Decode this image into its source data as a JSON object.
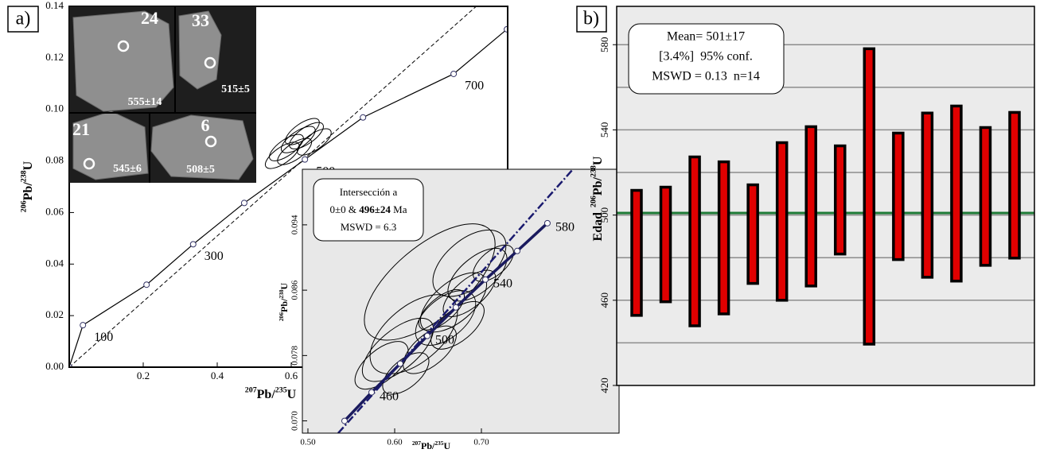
{
  "panel_labels": [
    "a)",
    "b)"
  ],
  "photo": [
    {
      "grain": "24",
      "age": "555±14"
    },
    {
      "grain": "33",
      "age": "515±5"
    },
    {
      "grain": "21",
      "age": "545±6"
    },
    {
      "grain": "6",
      "age": "508±5"
    }
  ],
  "chart_data": [
    {
      "type": "concordia",
      "xlabel": [
        "207",
        "Pb/",
        "235",
        "U"
      ],
      "ylabel": [
        "206",
        "Pb/",
        "238",
        "U"
      ],
      "xlim": [
        0,
        1.185
      ],
      "ylim": [
        0,
        0.14
      ],
      "xticks": [
        0.2,
        0.4,
        0.6
      ],
      "yticks": [
        {
          "value": 0,
          "label": "0.00"
        },
        {
          "value": 0.02,
          "label": "0.02"
        },
        {
          "value": 0.04,
          "label": "0.04"
        },
        {
          "value": 0.06,
          "label": "0.06"
        },
        {
          "value": 0.08,
          "label": "0.08"
        },
        {
          "value": 0.1,
          "label": "0.10"
        },
        {
          "value": 0.12,
          "label": "0.12"
        },
        {
          "value": 0.14,
          "label": "0.14"
        }
      ],
      "concordia": {
        "x": [
          0,
          0.037,
          0.209,
          0.335,
          0.473,
          0.637,
          0.794,
          1.039,
          1.183
        ],
        "y": [
          0,
          0.0163,
          0.032,
          0.0477,
          0.0637,
          0.0806,
          0.0969,
          0.1138,
          0.1311
        ],
        "labels": [
          null,
          "100",
          null,
          "300",
          null,
          "500",
          null,
          "700",
          null
        ]
      },
      "reference_line": {
        "x": [
          0,
          1.1
        ],
        "y": [
          0,
          0.14
        ]
      },
      "ellipses": [
        {
          "x": 0.587,
          "y": 0.0852,
          "rx": 0.054,
          "ry": 0.0031
        },
        {
          "x": 0.619,
          "y": 0.0883,
          "rx": 0.054,
          "ry": 0.0031
        },
        {
          "x": 0.641,
          "y": 0.0898,
          "rx": 0.054,
          "ry": 0.0031
        },
        {
          "x": 0.609,
          "y": 0.0837,
          "rx": 0.054,
          "ry": 0.0031
        },
        {
          "x": 0.662,
          "y": 0.0874,
          "rx": 0.054,
          "ry": 0.0031
        },
        {
          "x": 0.576,
          "y": 0.0822,
          "rx": 0.054,
          "ry": 0.0031
        },
        {
          "x": 0.63,
          "y": 0.0914,
          "rx": 0.054,
          "ry": 0.0031
        }
      ]
    },
    {
      "type": "concordia",
      "xlabel": [
        "207",
        "Pb/",
        "235",
        "U"
      ],
      "ylabel": [
        "206",
        "Pb/",
        "238",
        "U"
      ],
      "xlim": [
        0.4936,
        0.8587
      ],
      "ylim": [
        0.0685,
        0.1008
      ],
      "xticks": [
        {
          "value": 0.5,
          "label": "0.50"
        },
        {
          "value": 0.6,
          "label": "0.60"
        },
        {
          "value": 0.7,
          "label": "0.70"
        }
      ],
      "yticks": [
        {
          "value": 0.07,
          "label": "0.070"
        },
        {
          "value": 0.078,
          "label": "0.078"
        },
        {
          "value": 0.086,
          "label": "0.086"
        },
        {
          "value": 0.094,
          "label": "0.094"
        }
      ],
      "concordia": {
        "x": [
          0.5422,
          0.5734,
          0.6064,
          0.6376,
          0.6706,
          0.7046,
          0.7413,
          0.7761
        ],
        "y": [
          0.07,
          0.0735,
          0.077,
          0.0804,
          0.0839,
          0.0873,
          0.0908,
          0.0942
        ],
        "labels": [
          null,
          "460",
          null,
          "500",
          null,
          "540",
          null,
          "580"
        ]
      },
      "discordia": {
        "x": [
          0.5349,
          0.8055
        ],
        "y": [
          0.0685,
          0.1008
        ]
      },
      "ellipses": [
        {
          "x": 0.6404,
          "y": 0.087,
          "rx": 0.092,
          "ry": 0.0044
        },
        {
          "x": 0.6862,
          "y": 0.0893,
          "rx": 0.05,
          "ry": 0.0029
        },
        {
          "x": 0.6679,
          "y": 0.0845,
          "rx": 0.046,
          "ry": 0.0024
        },
        {
          "x": 0.622,
          "y": 0.0806,
          "rx": 0.06,
          "ry": 0.0034
        },
        {
          "x": 0.6587,
          "y": 0.0826,
          "rx": 0.041,
          "ry": 0.0024
        },
        {
          "x": 0.6037,
          "y": 0.0787,
          "rx": 0.05,
          "ry": 0.0024
        },
        {
          "x": 0.6404,
          "y": 0.0787,
          "rx": 0.037,
          "ry": 0.0019
        },
        {
          "x": 0.6862,
          "y": 0.0856,
          "rx": 0.037,
          "ry": 0.0017
        },
        {
          "x": 0.6954,
          "y": 0.0879,
          "rx": 0.041,
          "ry": 0.0021
        },
        {
          "x": 0.6725,
          "y": 0.0817,
          "rx": 0.037,
          "ry": 0.0019
        },
        {
          "x": 0.5849,
          "y": 0.0768,
          "rx": 0.037,
          "ry": 0.0019
        },
        {
          "x": 0.7137,
          "y": 0.0893,
          "rx": 0.028,
          "ry": 0.0015
        },
        {
          "x": 0.6541,
          "y": 0.0836,
          "rx": 0.032,
          "ry": 0.0015
        },
        {
          "x": 0.6128,
          "y": 0.0758,
          "rx": 0.032,
          "ry": 0.0017
        }
      ],
      "annotation": {
        "line1": "Intersección a",
        "line2": [
          "0±0 & ",
          "496±24",
          " Ma"
        ],
        "line3": "MSWD = 6.3"
      }
    },
    {
      "type": "range-bar",
      "ylabel_prefix": "Edad",
      "ylabel": [
        "206",
        "Pb/",
        "238",
        "U"
      ],
      "ylim": [
        420,
        598
      ],
      "yticks": [
        420,
        460,
        500,
        540,
        580
      ],
      "gridlines": [
        440,
        460,
        480,
        500,
        520,
        540,
        560,
        580
      ],
      "lows": [
        452.9,
        459.3,
        448.0,
        453.6,
        467.9,
        460.0,
        466.7,
        481.7,
        439.4,
        479.1,
        470.8,
        469.0,
        476.4,
        479.8
      ],
      "highs": [
        511.6,
        513.1,
        527.3,
        525.0,
        514.2,
        534.0,
        541.5,
        532.5,
        578.1,
        538.5,
        547.9,
        551.2,
        541.1,
        548.2
      ],
      "color": "#e00000",
      "mean": 501,
      "mean_color": "#1d7a35",
      "annotation": [
        "Mean= 501±17",
        "[3.4%]  95% conf.",
        "MSWD = 0.13  n=14"
      ]
    }
  ]
}
